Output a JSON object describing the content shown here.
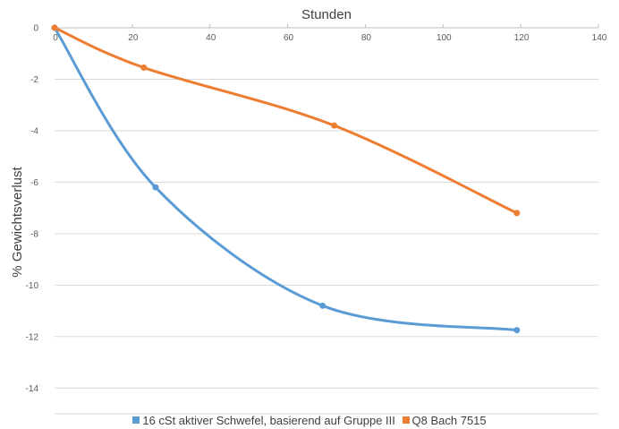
{
  "chart_data": {
    "type": "line",
    "title": "",
    "xlabel": "Stunden",
    "ylabel": "% Gewichtsverlust",
    "xlim": [
      0,
      140
    ],
    "ylim": [
      -15,
      0
    ],
    "x_ticks": [
      0,
      20,
      40,
      60,
      80,
      100,
      120,
      140
    ],
    "y_ticks": [
      0,
      -2,
      -4,
      -6,
      -8,
      -10,
      -12,
      -14
    ],
    "x_axis_position": "top",
    "grid": "horizontal",
    "smoothed": true,
    "legend_position": "bottom",
    "series": [
      {
        "name": "16 cSt aktiver Schwefel, basierend auf Gruppe III",
        "color": "#5b9bd5",
        "points": [
          [
            0,
            0
          ],
          [
            26,
            -6.2
          ],
          [
            69,
            -10.8
          ],
          [
            119,
            -11.75
          ]
        ]
      },
      {
        "name": "Q8 Bach 7515",
        "color": "#ed7d31",
        "points": [
          [
            0,
            0
          ],
          [
            23,
            -1.55
          ],
          [
            72,
            -3.8
          ],
          [
            119,
            -7.2
          ]
        ]
      }
    ]
  }
}
